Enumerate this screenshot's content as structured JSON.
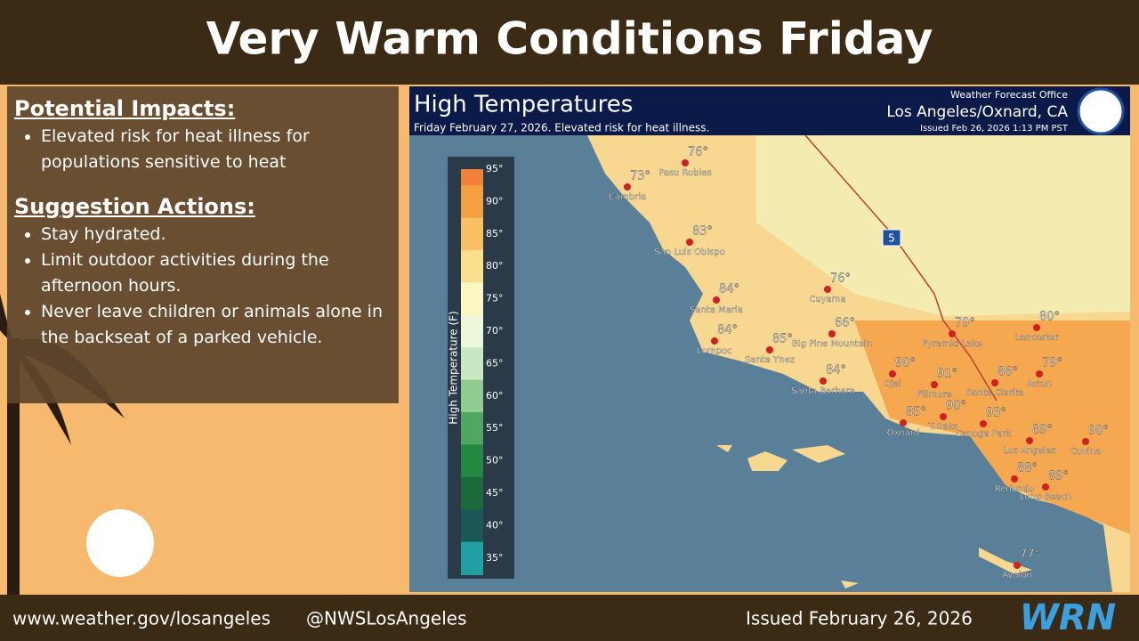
{
  "header": {
    "title": "Very Warm Conditions Friday"
  },
  "impacts": {
    "heading": "Potential Impacts:",
    "items": [
      "Elevated risk for heat illness for populations sensitive to heat"
    ]
  },
  "actions": {
    "heading": "Suggestion Actions:",
    "items": [
      "Stay hydrated.",
      "Limit outdoor activities during the afternoon hours.",
      "Never leave children or animals alone in the backseat of a parked vehicle."
    ]
  },
  "map": {
    "title": "High Temperatures",
    "subtitle": "Friday February 27, 2026. Elevated risk for heat illness.",
    "office": "Weather Forecast Office",
    "office_name": "Los Angeles/Oxnard, CA",
    "issued": "Issued Feb 26, 2026 1:13 PM PST",
    "highway": "5",
    "legend": {
      "title": "High Temperature (F)",
      "ticks": [
        "95°",
        "90°",
        "85°",
        "80°",
        "75°",
        "70°",
        "65°",
        "60°",
        "55°",
        "50°",
        "45°",
        "40°",
        "35°"
      ]
    },
    "cities": [
      {
        "name": "Cambria",
        "temp": "73°"
      },
      {
        "name": "Paso Robles",
        "temp": "76°"
      },
      {
        "name": "San Luis Obispo",
        "temp": "83°"
      },
      {
        "name": "Santa Maria",
        "temp": "84°"
      },
      {
        "name": "Lompoc",
        "temp": "84°"
      },
      {
        "name": "Santa Ynez",
        "temp": "85°"
      },
      {
        "name": "Big Pine Mountain",
        "temp": "66°"
      },
      {
        "name": "Cuyama",
        "temp": "76°"
      },
      {
        "name": "Santa Barbara",
        "temp": "84°"
      },
      {
        "name": "Ojai",
        "temp": "90°"
      },
      {
        "name": "Fillmore",
        "temp": "91°"
      },
      {
        "name": "Pyramid Lake",
        "temp": "79°"
      },
      {
        "name": "Lancaster",
        "temp": "80°"
      },
      {
        "name": "Santa Clarita",
        "temp": "86°"
      },
      {
        "name": "Acton",
        "temp": "79°"
      },
      {
        "name": "Oxnard",
        "temp": "85°"
      },
      {
        "name": "T.Oaks",
        "temp": "90°"
      },
      {
        "name": "Canoga Park",
        "temp": "93°"
      },
      {
        "name": "Los Angeles",
        "temp": "89°"
      },
      {
        "name": "Covina",
        "temp": "90°"
      },
      {
        "name": "Redondo",
        "temp": "88°"
      },
      {
        "name": "Long Beach",
        "temp": "89°"
      },
      {
        "name": "Avalon",
        "temp": "77°"
      }
    ]
  },
  "footer": {
    "url": "www.weather.gov/losangeles",
    "handle": "@NWSLosAngeles",
    "issued": "Issued February 26, 2026",
    "logo": "WRN"
  }
}
